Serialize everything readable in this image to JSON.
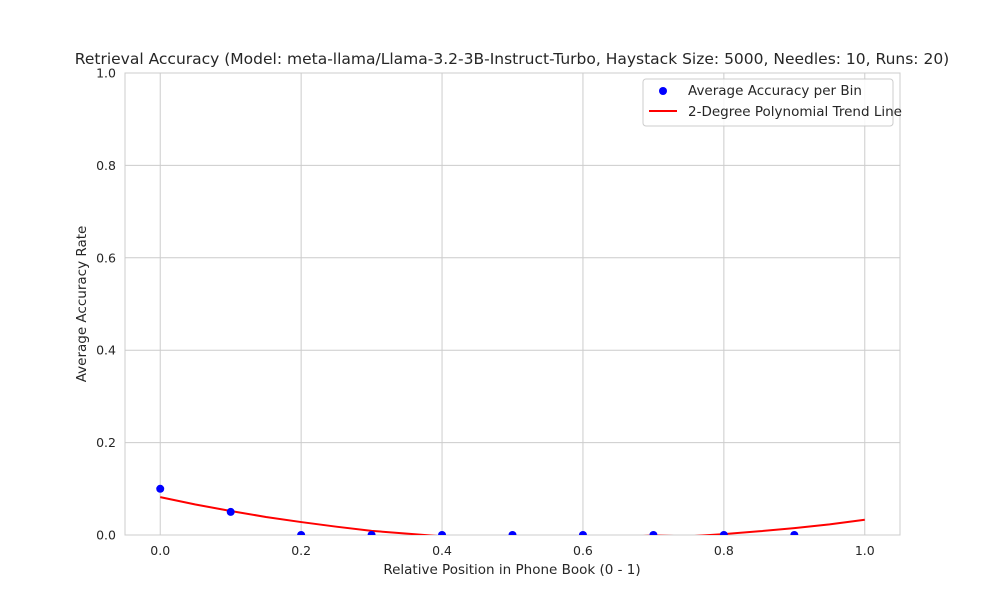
{
  "chart_data": {
    "type": "scatter",
    "title": "Retrieval Accuracy (Model: meta-llama/Llama-3.2-3B-Instruct-Turbo, Haystack Size: 5000, Needles: 10, Runs: 20)",
    "xlabel": "Relative Position in Phone Book (0 - 1)",
    "ylabel": "Average Accuracy Rate",
    "xlim": [
      -0.05,
      1.05
    ],
    "ylim": [
      0,
      1.0
    ],
    "xticks": [
      "0.0",
      "0.2",
      "0.4",
      "0.6",
      "0.8",
      "1.0"
    ],
    "yticks": [
      "0.0",
      "0.2",
      "0.4",
      "0.6",
      "0.8",
      "1.0"
    ],
    "grid": true,
    "legend_position": "top-right",
    "series": [
      {
        "name": "Average Accuracy per Bin",
        "kind": "scatter",
        "color": "#0000ff",
        "x": [
          0.0,
          0.1,
          0.2,
          0.3,
          0.4,
          0.5,
          0.6,
          0.7,
          0.8,
          0.9
        ],
        "y": [
          0.1,
          0.05,
          0.0,
          0.0,
          0.0,
          0.0,
          0.0,
          0.0,
          0.0,
          0.0
        ]
      },
      {
        "name": "2-Degree Polynomial Trend Line",
        "kind": "line",
        "color": "#ff0000",
        "x": [
          0.0,
          0.05,
          0.1,
          0.15,
          0.2,
          0.25,
          0.3,
          0.35,
          0.4,
          0.45,
          0.5,
          0.55,
          0.6,
          0.65,
          0.7,
          0.75,
          0.8,
          0.85,
          0.9,
          0.95,
          1.0
        ],
        "y": [
          0.082,
          0.066,
          0.052,
          0.039,
          0.028,
          0.018,
          0.009,
          0.003,
          -0.003,
          -0.007,
          -0.009,
          -0.009,
          -0.008,
          -0.005,
          -0.001,
          -0.003,
          0.002,
          0.008,
          0.015,
          0.023,
          0.033
        ]
      }
    ]
  }
}
